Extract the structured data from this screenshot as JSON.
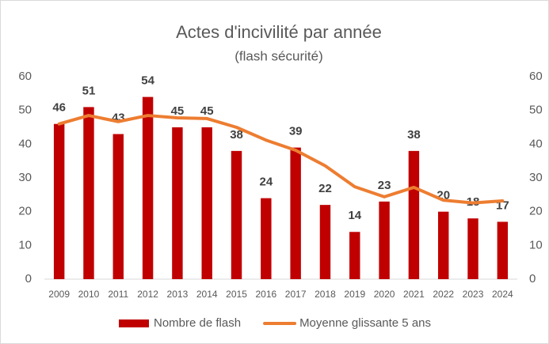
{
  "chart_data": {
    "type": "bar-line",
    "title": "Actes d'incivilité par année",
    "subtitle": "(flash sécurité)",
    "categories": [
      "2009",
      "2010",
      "2011",
      "2012",
      "2013",
      "2014",
      "2015",
      "2016",
      "2017",
      "2018",
      "2019",
      "2020",
      "2021",
      "2022",
      "2023",
      "2024"
    ],
    "series": [
      {
        "name": "Nombre de flash",
        "type": "bar",
        "color": "#c00000",
        "values": [
          46,
          51,
          43,
          54,
          45,
          45,
          38,
          24,
          39,
          22,
          14,
          23,
          38,
          20,
          18,
          17
        ]
      },
      {
        "name": "Moyenne glissante 5 ans",
        "type": "line",
        "axis": "y2",
        "color": "#ed7d31",
        "values": [
          46,
          48.5,
          46.7,
          48.5,
          47.8,
          47.6,
          45,
          41.2,
          38.2,
          33.6,
          27.4,
          24.4,
          27.2,
          23.4,
          22.6,
          23.2
        ]
      }
    ],
    "ylim": [
      0,
      60
    ],
    "yticks": [
      0,
      10,
      20,
      30,
      40,
      50,
      60
    ],
    "y2lim": [
      0,
      60
    ],
    "y2ticks": [
      0,
      10,
      20,
      30,
      40,
      50,
      60
    ],
    "grid": false,
    "legend": "bottom"
  }
}
